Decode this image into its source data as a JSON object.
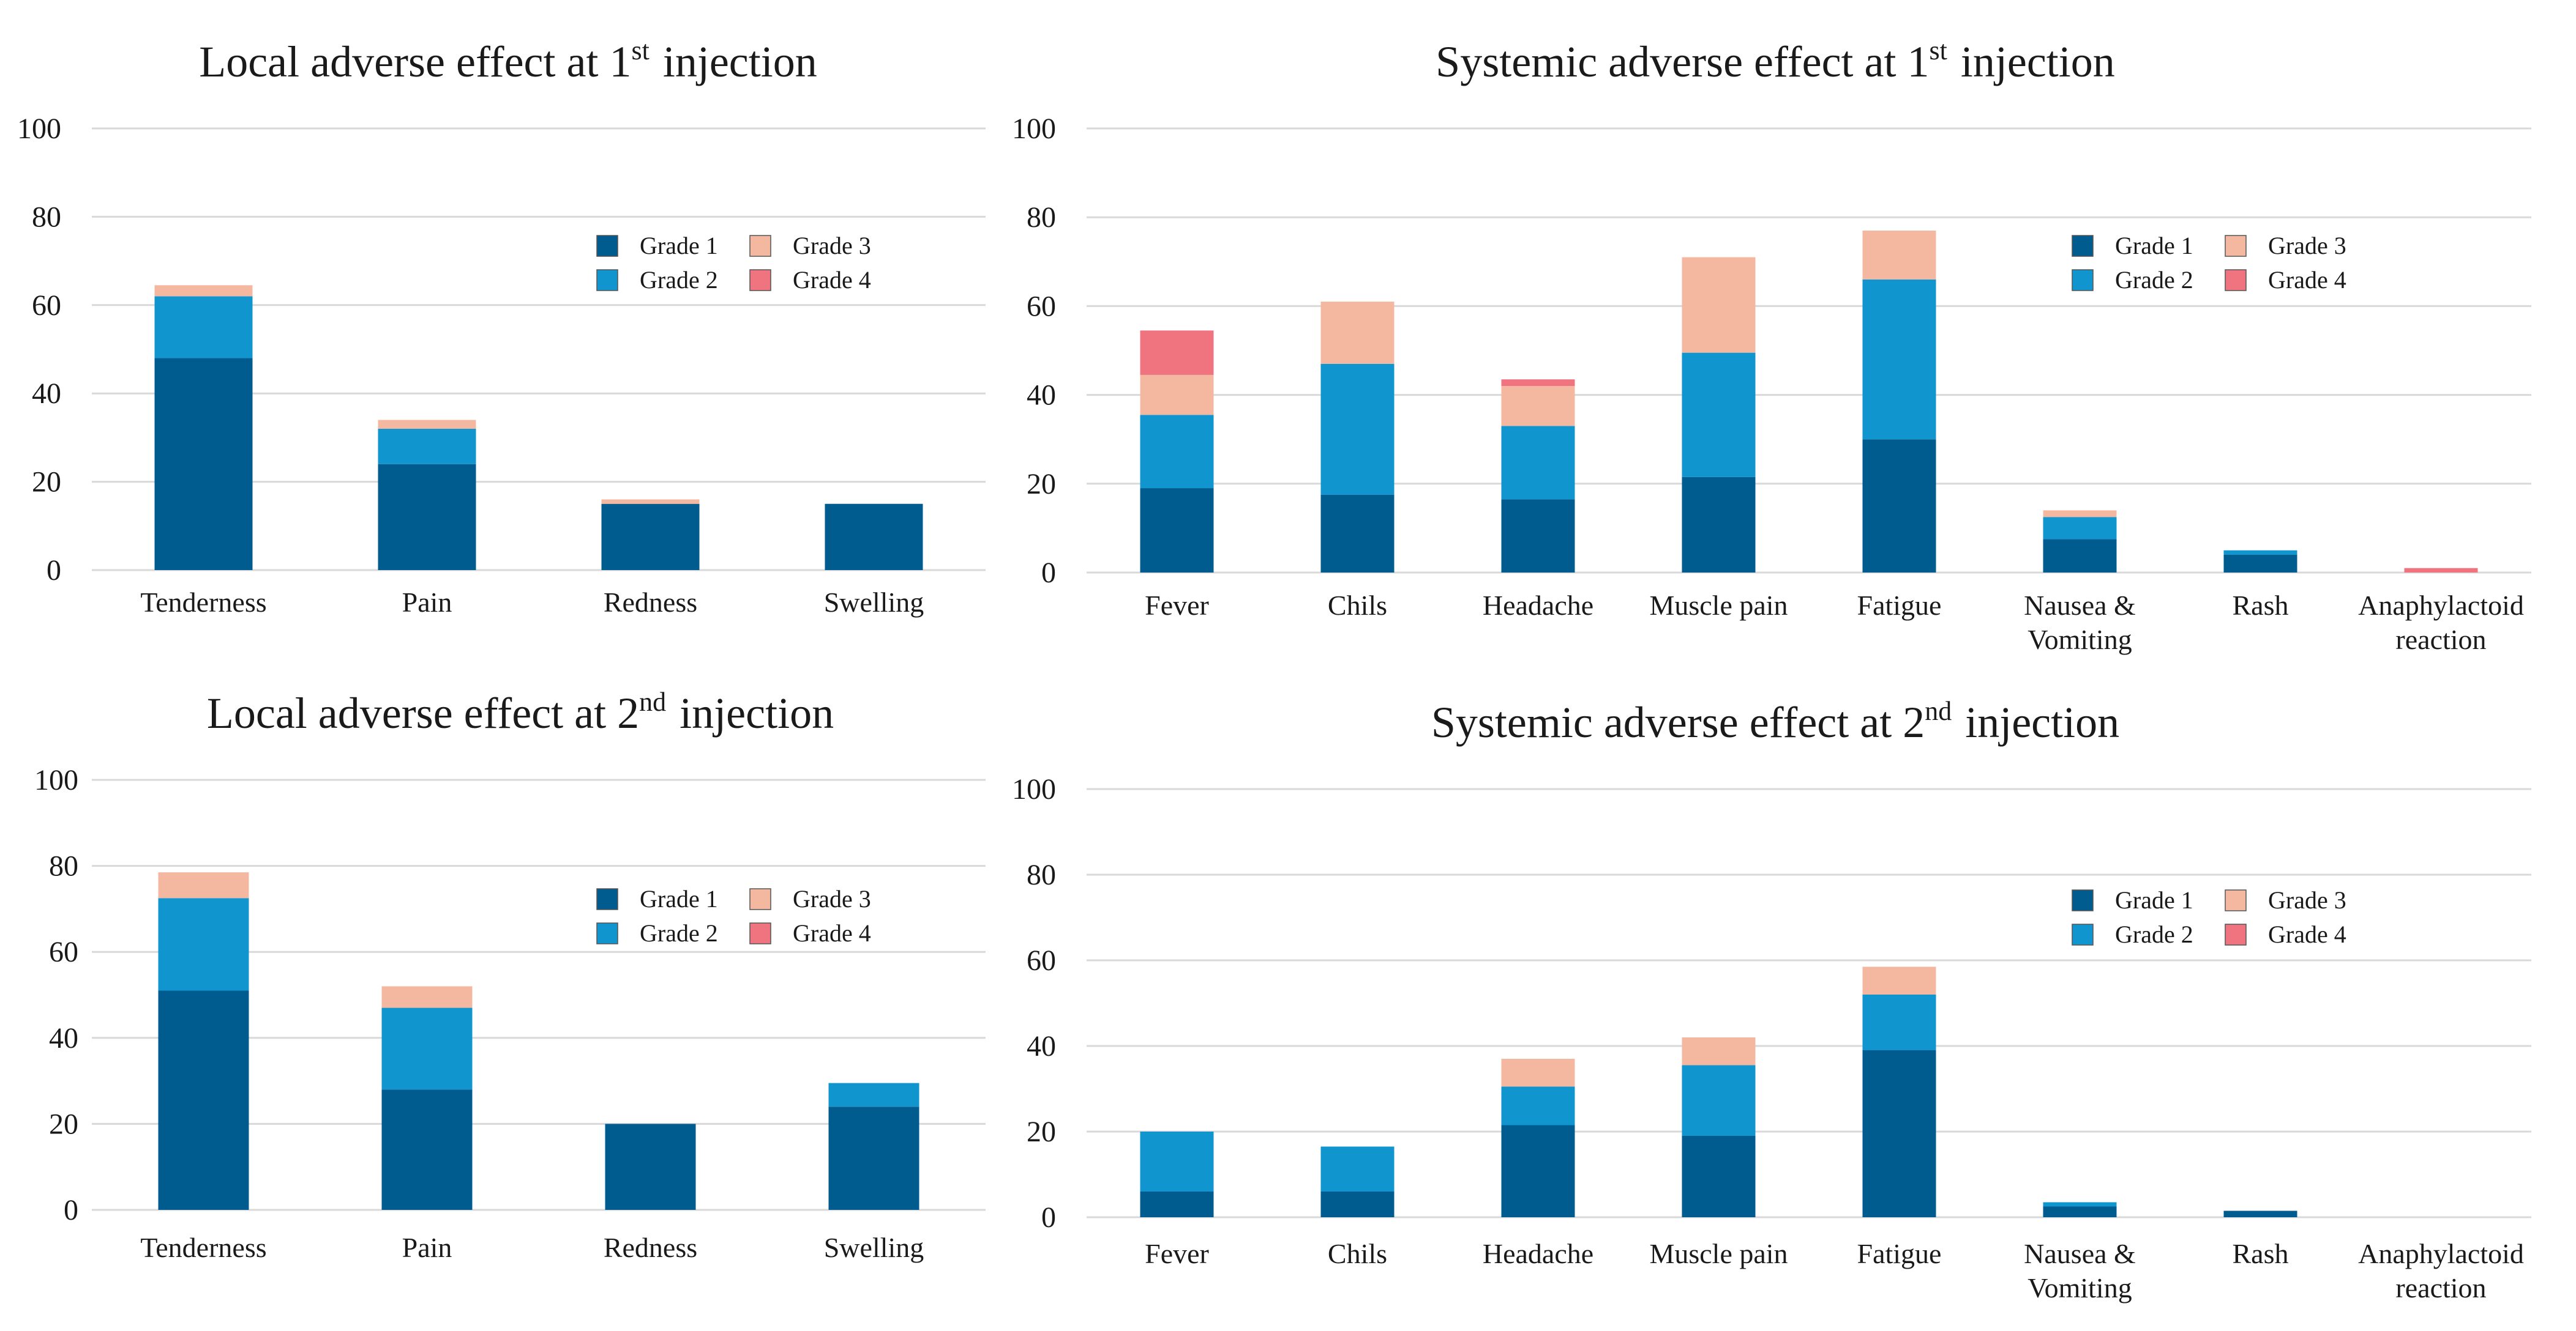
{
  "legend_labels": [
    "Grade 1",
    "Grade 2",
    "Grade 3",
    "Grade 4"
  ],
  "colors": {
    "grade1": "#005b8f",
    "grade2": "#1195cf",
    "grade3": "#f4b8a0",
    "grade4": "#ef7480",
    "grid": "#d9d9d9",
    "text": "#1a1a1a"
  },
  "chart_data": [
    {
      "id": "local-1",
      "type": "bar",
      "stacked": true,
      "title": "Local adverse effect at 1",
      "title_sup": "st",
      "title_suffix": "injection",
      "categories": [
        [
          "Tenderness"
        ],
        [
          "Pain"
        ],
        [
          "Redness"
        ],
        [
          "Swelling"
        ]
      ],
      "ylim": [
        0,
        100
      ],
      "yticks": [
        0,
        20,
        40,
        60,
        80,
        100
      ],
      "grid": true,
      "legend_position": "top-right",
      "series": [
        {
          "name": "Grade 1",
          "values": [
            48,
            24,
            15,
            15
          ]
        },
        {
          "name": "Grade 2",
          "values": [
            14,
            8,
            0,
            0
          ]
        },
        {
          "name": "Grade 3",
          "values": [
            2.5,
            2,
            1,
            0
          ]
        },
        {
          "name": "Grade 4",
          "values": [
            0,
            0,
            0,
            0
          ]
        }
      ]
    },
    {
      "id": "systemic-1",
      "type": "bar",
      "stacked": true,
      "title": "Systemic adverse effect at 1",
      "title_sup": "st",
      "title_suffix": "injection",
      "categories": [
        [
          "Fever"
        ],
        [
          "Chils"
        ],
        [
          "Headache"
        ],
        [
          "Muscle pain"
        ],
        [
          "Fatigue"
        ],
        [
          "Nausea &",
          "Vomiting"
        ],
        [
          "Rash"
        ],
        [
          "Anaphylactoid",
          "reaction"
        ]
      ],
      "ylim": [
        0,
        100
      ],
      "yticks": [
        0,
        20,
        40,
        60,
        80,
        100
      ],
      "grid": true,
      "legend_position": "top-right",
      "series": [
        {
          "name": "Grade 1",
          "values": [
            19,
            17.5,
            16.5,
            21.5,
            30,
            7.5,
            4,
            0
          ]
        },
        {
          "name": "Grade 2",
          "values": [
            16.5,
            29.5,
            16.5,
            28,
            36,
            5,
            1,
            0
          ]
        },
        {
          "name": "Grade 3",
          "values": [
            9,
            14,
            9,
            21.5,
            11,
            1.5,
            0,
            0
          ]
        },
        {
          "name": "Grade 4",
          "values": [
            10,
            0,
            1.5,
            0,
            0,
            0,
            0,
            1
          ]
        }
      ]
    },
    {
      "id": "local-2",
      "type": "bar",
      "stacked": true,
      "title": "Local adverse effect at 2",
      "title_sup": "nd",
      "title_suffix": "injection",
      "categories": [
        [
          "Tenderness"
        ],
        [
          "Pain"
        ],
        [
          "Redness"
        ],
        [
          "Swelling"
        ]
      ],
      "ylim": [
        0,
        100
      ],
      "yticks": [
        0,
        20,
        40,
        60,
        80,
        100
      ],
      "grid": true,
      "legend_position": "top-right",
      "series": [
        {
          "name": "Grade 1",
          "values": [
            51,
            28,
            20,
            24
          ]
        },
        {
          "name": "Grade 2",
          "values": [
            21.5,
            19,
            0,
            5.5
          ]
        },
        {
          "name": "Grade 3",
          "values": [
            6,
            5,
            0,
            0
          ]
        },
        {
          "name": "Grade 4",
          "values": [
            0,
            0,
            0,
            0
          ]
        }
      ]
    },
    {
      "id": "systemic-2",
      "type": "bar",
      "stacked": true,
      "title": "Systemic adverse effect at 2",
      "title_sup": "nd",
      "title_suffix": "injection",
      "categories": [
        [
          "Fever"
        ],
        [
          "Chils"
        ],
        [
          "Headache"
        ],
        [
          "Muscle pain"
        ],
        [
          "Fatigue"
        ],
        [
          "Nausea &",
          "Vomiting"
        ],
        [
          "Rash"
        ],
        [
          "Anaphylactoid",
          "reaction"
        ]
      ],
      "ylim": [
        0,
        100
      ],
      "yticks": [
        0,
        20,
        40,
        60,
        80,
        100
      ],
      "grid": true,
      "legend_position": "top-right",
      "series": [
        {
          "name": "Grade 1",
          "values": [
            6,
            6,
            21.5,
            19,
            39,
            2.5,
            1.5,
            0
          ]
        },
        {
          "name": "Grade 2",
          "values": [
            14,
            10.5,
            9,
            16.5,
            13,
            1,
            0,
            0
          ]
        },
        {
          "name": "Grade 3",
          "values": [
            0,
            0,
            6.5,
            6.5,
            6.5,
            0,
            0,
            0
          ]
        },
        {
          "name": "Grade 4",
          "values": [
            0,
            0,
            0,
            0,
            0,
            0,
            0,
            0
          ]
        }
      ]
    }
  ]
}
